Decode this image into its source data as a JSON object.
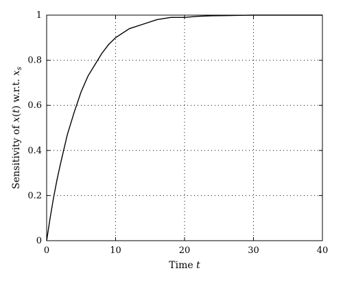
{
  "chart_data": {
    "type": "line",
    "title": "",
    "xlabel": {
      "text": "Time ",
      "var": "t"
    },
    "ylabel": {
      "text": "Sensitivity of ",
      "fn": "x",
      "paren_open": "(",
      "arg": "t",
      "paren_close": ")",
      "mid": " w.r.t. ",
      "sym": "x",
      "sub": "s"
    },
    "xlim": [
      0,
      40
    ],
    "ylim": [
      0,
      1
    ],
    "grid": true,
    "x_ticks": [
      0,
      10,
      20,
      30,
      40
    ],
    "y_ticks": [
      0,
      0.2,
      0.4,
      0.6,
      0.8,
      1
    ],
    "x_tick_labels": [
      "0",
      "10",
      "20",
      "30",
      "40"
    ],
    "y_tick_labels": [
      "0",
      "0.2",
      "0.4",
      "0.6",
      "0.8",
      "1"
    ],
    "series": [
      {
        "x": [
          0,
          0.5,
          1,
          1.5,
          2,
          3,
          4,
          5,
          6,
          7,
          8,
          9,
          10,
          12,
          14,
          16,
          18,
          20,
          22,
          24,
          26,
          28,
          30,
          32,
          34,
          36,
          38,
          40
        ],
        "y": [
          0,
          0.1,
          0.19,
          0.27,
          0.34,
          0.47,
          0.57,
          0.66,
          0.73,
          0.78,
          0.83,
          0.87,
          0.9,
          0.94,
          0.96,
          0.98,
          0.99,
          0.99,
          0.995,
          0.997,
          0.998,
          0.999,
          1,
          1,
          1,
          1,
          1,
          1
        ]
      }
    ]
  }
}
